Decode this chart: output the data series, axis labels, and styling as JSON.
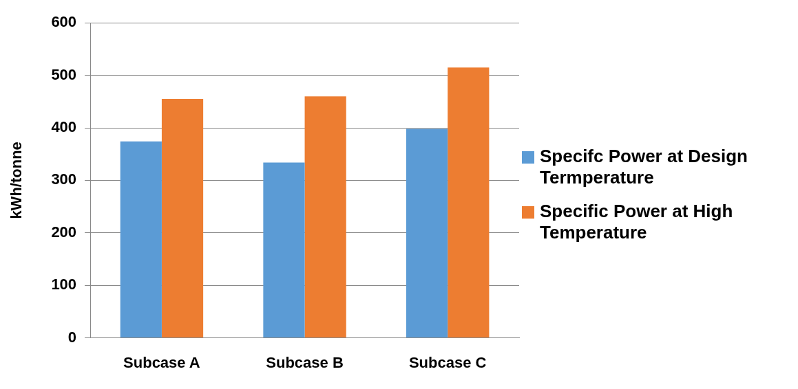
{
  "chart_data": {
    "type": "bar",
    "ylabel": "kWh/tonne",
    "categories": [
      "Subcase A",
      "Subcase B",
      "Subcase C"
    ],
    "series": [
      {
        "name": "Specifc Power at Design Termperature",
        "color": "#5b9bd5",
        "values": [
          374,
          334,
          398
        ]
      },
      {
        "name": "Specific Power at High Temperature",
        "color": "#ed7d31",
        "values": [
          455,
          460,
          515
        ]
      }
    ],
    "ylim": [
      0,
      600
    ],
    "yticks": [
      0,
      100,
      200,
      300,
      400,
      500,
      600
    ],
    "grid": "y",
    "legend": "right"
  }
}
